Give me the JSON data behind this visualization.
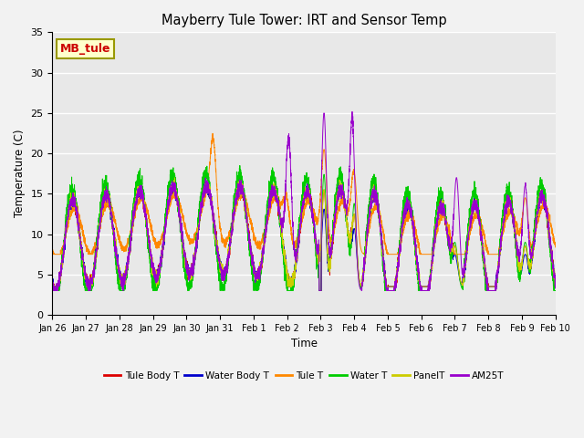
{
  "title": "Mayberry Tule Tower: IRT and Sensor Temp",
  "xlabel": "Time",
  "ylabel": "Temperature (C)",
  "ylim": [
    0,
    35
  ],
  "series": {
    "Tule Body T": {
      "color": "#dd0000"
    },
    "Water Body T": {
      "color": "#0000cc"
    },
    "Tule T": {
      "color": "#ff8800"
    },
    "Water T": {
      "color": "#00cc00"
    },
    "PanelT": {
      "color": "#cccc00"
    },
    "AM25T": {
      "color": "#9900cc"
    }
  },
  "tick_labels": [
    "Jan 26",
    "Jan 27",
    "Jan 28",
    "Jan 29",
    "Jan 30",
    "Jan 31",
    "Feb 1",
    "Feb 2",
    "Feb 3",
    "Feb 4",
    "Feb 5",
    "Feb 6",
    "Feb 7",
    "Feb 8",
    "Feb 9",
    "Feb 10"
  ],
  "yticks": [
    0,
    5,
    10,
    15,
    20,
    25,
    30,
    35
  ],
  "plot_bg": "#e8e8e8",
  "fig_bg": "#f2f2f2",
  "annotation": {
    "text": "MB_tule",
    "facecolor": "#ffffcc",
    "edgecolor": "#999900",
    "textcolor": "#cc0000"
  },
  "n_points": 5000
}
